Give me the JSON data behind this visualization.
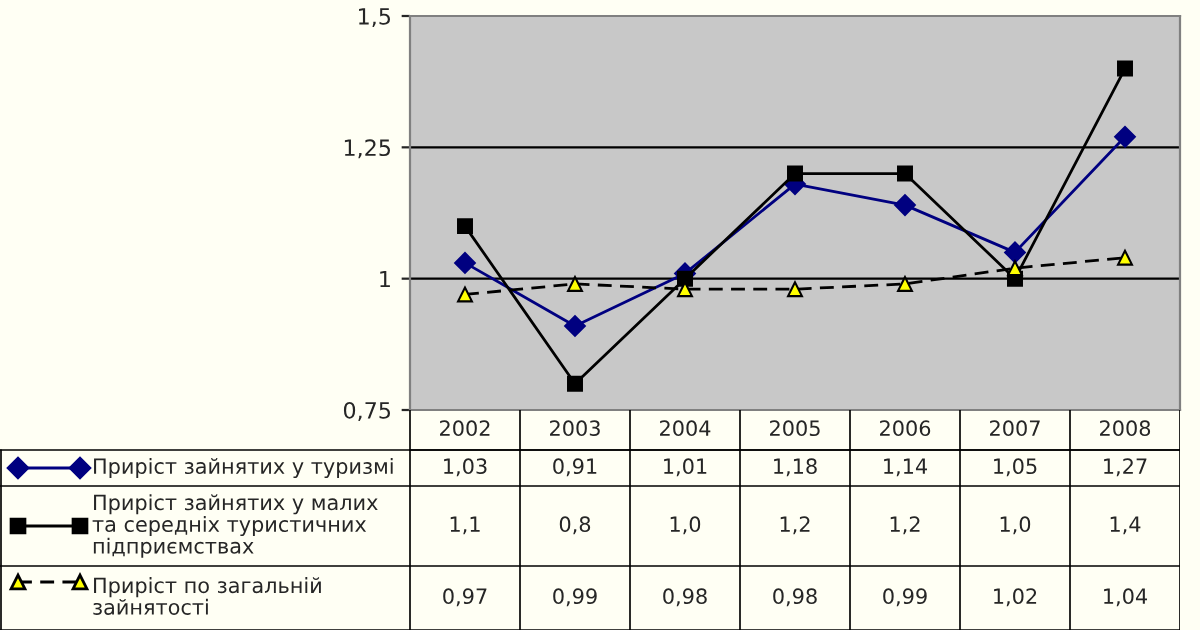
{
  "chart_data": {
    "type": "line",
    "categories": [
      "2002",
      "2003",
      "2004",
      "2005",
      "2006",
      "2007",
      "2008"
    ],
    "series": [
      {
        "name": "Приріст зайнятих у туризмі",
        "color": "#000080",
        "marker": "diamond",
        "line_style": "solid",
        "values": [
          1.03,
          0.91,
          1.01,
          1.18,
          1.14,
          1.05,
          1.27
        ],
        "value_labels": [
          "1,03",
          "0,91",
          "1,01",
          "1,18",
          "1,14",
          "1,05",
          "1,27"
        ]
      },
      {
        "name": "Приріст зайнятих у малих та середніх туристичних підприємствах",
        "color": "#000000",
        "marker": "square",
        "line_style": "solid",
        "values": [
          1.1,
          0.8,
          1.0,
          1.2,
          1.2,
          1.0,
          1.4
        ],
        "value_labels": [
          "1,1",
          "0,8",
          "1,0",
          "1,2",
          "1,2",
          "1,0",
          "1,4"
        ]
      },
      {
        "name": "Приріст по загальній зайнятості",
        "color": "#000000",
        "colors": [
          "#ffff00",
          "#ffff00",
          "#ffff00",
          "#ffff00",
          "#ffff00",
          "#ffff00",
          "#ffff00"
        ],
        "marker": "triangle",
        "line_style": "dashed",
        "values": [
          0.97,
          0.99,
          0.98,
          0.98,
          0.99,
          1.02,
          1.04
        ],
        "value_labels": [
          "0,97",
          "0,99",
          "0,98",
          "0,98",
          "0,99",
          "1,02",
          "1,04"
        ]
      }
    ],
    "ylim": [
      0.75,
      1.5
    ],
    "yticks": [
      {
        "value": 0.75,
        "label": "0,75"
      },
      1,
      {
        "value": 1.25,
        "label": "1,25"
      },
      {
        "value": 1.5,
        "label": "1,5"
      }
    ],
    "grid": "y",
    "legend": "bottom"
  }
}
